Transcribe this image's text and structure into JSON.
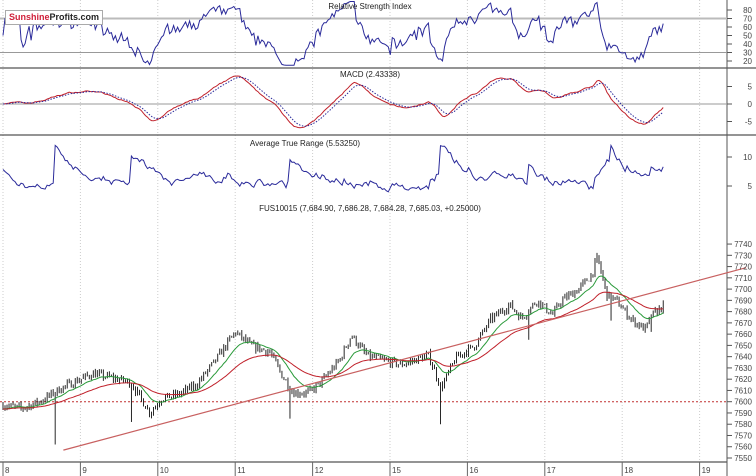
{
  "logo": {
    "part1": "Sunshine",
    "part2": "Profits.com"
  },
  "chart_data": [
    {
      "type": "line",
      "title": "Relative Strength Index",
      "yticks": [
        80,
        70,
        60,
        50,
        40,
        30,
        20
      ],
      "ylim": [
        15,
        95
      ],
      "reference_lines": [
        70,
        30
      ]
    },
    {
      "type": "line",
      "title": "MACD (2.43338)",
      "yticks": [
        5,
        0,
        -5
      ],
      "ylim": [
        -9.5,
        10
      ],
      "series": [
        {
          "name": "MACD",
          "color": "#c0202a"
        },
        {
          "name": "Signal",
          "color": "#2a2a9a",
          "style": "dotted"
        }
      ]
    },
    {
      "type": "line",
      "title": "Average True Range (5.53250)",
      "yticks": [
        10,
        5
      ],
      "ylim": [
        1,
        14
      ]
    },
    {
      "type": "candlestick",
      "title": "FUS10015 (7,684.90, 7,686.28, 7,684.28, 7,685.03, +0.25000)",
      "x_tick_labels": [
        "8",
        "9",
        "10",
        "11",
        "12",
        "15",
        "16",
        "17",
        "18",
        "19"
      ],
      "yticks": [
        7740,
        7730,
        7720,
        7710,
        7700,
        7690,
        7680,
        7670,
        7660,
        7650,
        7640,
        7630,
        7620,
        7610,
        7600,
        7590,
        7580,
        7570,
        7560,
        7550
      ],
      "ylim": [
        7550,
        7740
      ],
      "price_path": [
        [
          0,
          7597
        ],
        [
          0.25,
          7594
        ],
        [
          0.5,
          7601
        ],
        [
          0.75,
          7612
        ],
        [
          0.97,
          7619
        ],
        [
          1.16,
          7625
        ],
        [
          1.42,
          7621
        ],
        [
          1.65,
          7617
        ],
        [
          1.9,
          7590
        ],
        [
          2.05,
          7603
        ],
        [
          2.25,
          7606
        ],
        [
          2.5,
          7615
        ],
        [
          2.75,
          7637
        ],
        [
          3.0,
          7662
        ],
        [
          3.2,
          7650
        ],
        [
          3.45,
          7644
        ],
        [
          3.6,
          7624
        ],
        [
          3.75,
          7608
        ],
        [
          3.95,
          7608
        ],
        [
          4.13,
          7619
        ],
        [
          4.35,
          7637
        ],
        [
          4.5,
          7659
        ],
        [
          4.7,
          7641
        ],
        [
          4.9,
          7637
        ],
        [
          5.15,
          7633
        ],
        [
          5.5,
          7641
        ],
        [
          5.66,
          7612
        ],
        [
          5.85,
          7639
        ],
        [
          6.1,
          7650
        ],
        [
          6.3,
          7673
        ],
        [
          6.55,
          7686
        ],
        [
          6.7,
          7674
        ],
        [
          6.9,
          7690
        ],
        [
          7.1,
          7677
        ],
        [
          7.22,
          7690
        ],
        [
          7.42,
          7699
        ],
        [
          7.6,
          7712
        ],
        [
          7.68,
          7728
        ],
        [
          7.8,
          7695
        ],
        [
          7.92,
          7690
        ],
        [
          8.12,
          7673
        ],
        [
          8.3,
          7664
        ],
        [
          8.37,
          7676
        ],
        [
          8.53,
          7685
        ]
      ],
      "spikes": [
        [
          0.67,
          7562
        ],
        [
          1.66,
          7582
        ],
        [
          3.72,
          7585
        ],
        [
          5.65,
          7580
        ],
        [
          6.8,
          7655
        ],
        [
          7.85,
          7672
        ],
        [
          8.38,
          7662
        ]
      ],
      "moving_averages": [
        {
          "name": "short MA",
          "color": "#2a9a3a"
        },
        {
          "name": "long MA",
          "color": "#c0202a"
        }
      ],
      "trendline": {
        "from": [
          0.78,
          7557
        ],
        "to": [
          9.6,
          7719
        ],
        "color": "#c86060"
      },
      "horizontal_line": {
        "value": 7600,
        "color": "#c03030",
        "style": "dotted"
      }
    }
  ]
}
